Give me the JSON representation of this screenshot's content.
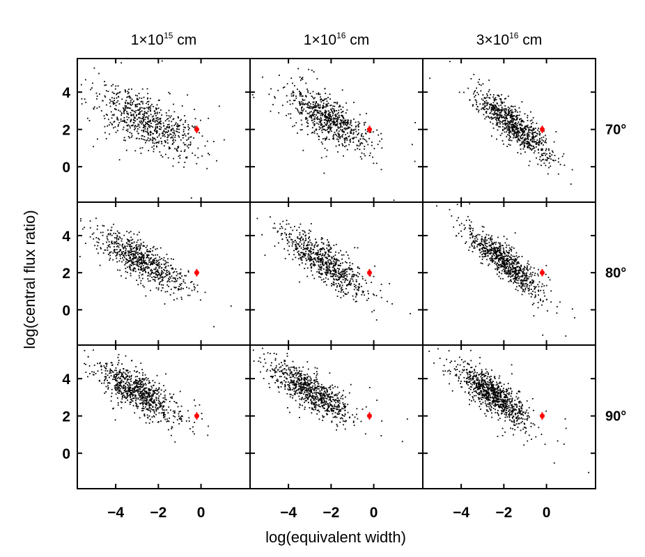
{
  "chart_data": {
    "type": "scatter",
    "layout": "3x3 grid",
    "xlabel": "log(equivalent width)",
    "ylabel": "log(central flux ratio)",
    "xlim": [
      -5.8,
      2.3
    ],
    "ylim": [
      -1.9,
      5.8
    ],
    "xticks": [
      -4,
      -2,
      0
    ],
    "yticks": [
      0,
      2,
      4
    ],
    "columns": [
      {
        "base": "1×10",
        "exp": "15",
        "unit": " cm",
        "label": "1×10^15 cm"
      },
      {
        "base": "1×10",
        "exp": "16",
        "unit": " cm",
        "label": "1×10^16 cm"
      },
      {
        "base": "3×10",
        "exp": "16",
        "unit": " cm",
        "label": "3×10^16 cm"
      }
    ],
    "rows": [
      {
        "label": "70°"
      },
      {
        "label": "80°"
      },
      {
        "label": "90°"
      }
    ],
    "observed_point": {
      "x": -0.2,
      "y": 2.0,
      "yerr": 0.2,
      "color": "#ff0000"
    },
    "simulated_color": "#000000",
    "panels": [
      {
        "row": 0,
        "col": 0,
        "n": 700,
        "cx": -2.5,
        "cy": 2.4,
        "sx": 1.1,
        "sy": 0.7,
        "slope": -0.45
      },
      {
        "row": 0,
        "col": 1,
        "n": 700,
        "cx": -2.1,
        "cy": 2.5,
        "sx": 0.95,
        "sy": 0.6,
        "slope": -0.6
      },
      {
        "row": 0,
        "col": 2,
        "n": 800,
        "cx": -1.6,
        "cy": 2.3,
        "sx": 0.85,
        "sy": 0.45,
        "slope": -0.9
      },
      {
        "row": 1,
        "col": 0,
        "n": 700,
        "cx": -2.7,
        "cy": 2.6,
        "sx": 1.0,
        "sy": 0.5,
        "slope": -0.6
      },
      {
        "row": 1,
        "col": 1,
        "n": 700,
        "cx": -2.3,
        "cy": 2.6,
        "sx": 0.95,
        "sy": 0.5,
        "slope": -0.75
      },
      {
        "row": 1,
        "col": 2,
        "n": 800,
        "cx": -2.0,
        "cy": 2.6,
        "sx": 0.85,
        "sy": 0.45,
        "slope": -0.9
      },
      {
        "row": 2,
        "col": 0,
        "n": 800,
        "cx": -3.0,
        "cy": 3.3,
        "sx": 0.9,
        "sy": 0.5,
        "slope": -0.6
      },
      {
        "row": 2,
        "col": 1,
        "n": 800,
        "cx": -2.9,
        "cy": 3.3,
        "sx": 0.95,
        "sy": 0.45,
        "slope": -0.6
      },
      {
        "row": 2,
        "col": 2,
        "n": 900,
        "cx": -2.5,
        "cy": 3.1,
        "sx": 0.8,
        "sy": 0.45,
        "slope": -0.75
      }
    ]
  }
}
